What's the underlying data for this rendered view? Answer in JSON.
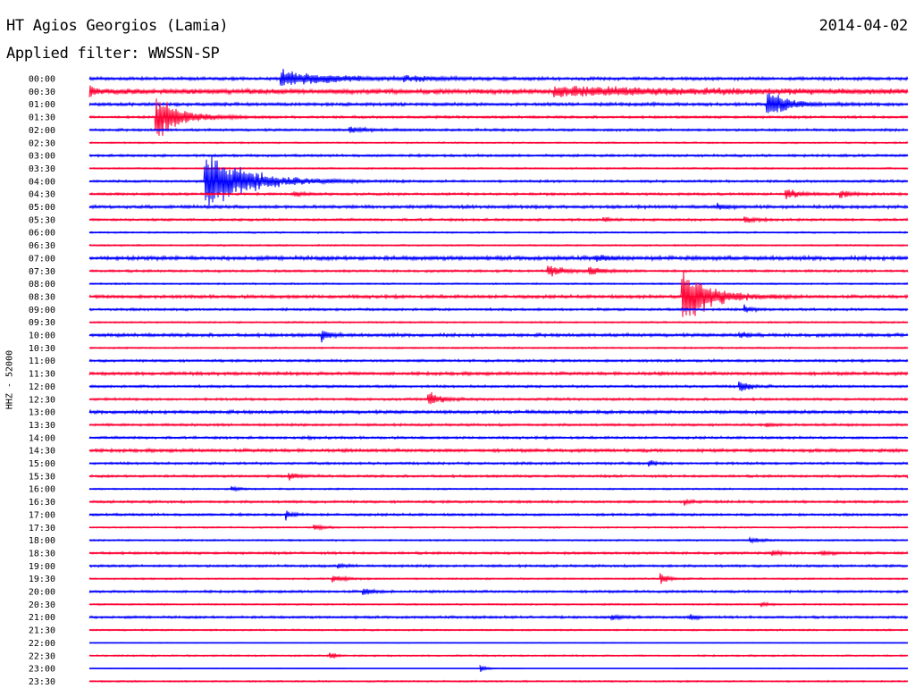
{
  "header": {
    "station": "HT Agios Georgios (Lamia)",
    "date": "2014-04-02",
    "filter": "Applied filter: WWSSN-SP",
    "channel": "HHZ - 52000"
  },
  "colors": {
    "even_rows": "#0000ff",
    "odd_rows": "#ff0033"
  },
  "chart_data": {
    "type": "line",
    "title": "HT Agios Georgios (Lamia)",
    "subtitle": "Applied filter: WWSSN-SP",
    "ylabel": "HHZ - 52000",
    "rows": [
      "00:00",
      "00:30",
      "01:00",
      "01:30",
      "02:00",
      "02:30",
      "03:00",
      "03:30",
      "04:00",
      "04:30",
      "05:00",
      "05:30",
      "06:00",
      "06:30",
      "07:00",
      "07:30",
      "08:00",
      "08:30",
      "09:00",
      "09:30",
      "10:00",
      "10:30",
      "11:00",
      "11:30",
      "12:00",
      "12:30",
      "13:00",
      "13:30",
      "14:00",
      "14:30",
      "15:00",
      "15:30",
      "16:00",
      "16:30",
      "17:00",
      "17:30",
      "18:00",
      "18:30",
      "19:00",
      "19:30",
      "20:00",
      "20:30",
      "21:00",
      "21:30",
      "22:00",
      "22:30",
      "23:00",
      "23:30"
    ],
    "row_minutes": 30,
    "noise": [
      2,
      3,
      2,
      1.5,
      1.5,
      1,
      1.5,
      1,
      1.5,
      1.5,
      2,
      1.5,
      1,
      1,
      2.5,
      1.5,
      1,
      2,
      1.5,
      1,
      2,
      1,
      1.5,
      2,
      1.5,
      1.5,
      2,
      1.5,
      1.5,
      2,
      1.5,
      1.5,
      1,
      1.5,
      1.5,
      1,
      1,
      1.5,
      1.5,
      1,
      1.5,
      1,
      1.5,
      1,
      0.5,
      1,
      0.5,
      1
    ],
    "events": [
      {
        "row": 0,
        "t": 7.0,
        "amp": 10,
        "dur": 3.0
      },
      {
        "row": 0,
        "t": 11.5,
        "amp": 3,
        "dur": 2.0
      },
      {
        "row": 1,
        "t": 17.0,
        "amp": 5,
        "dur": 10.0
      },
      {
        "row": 1,
        "t": 0.0,
        "amp": 6,
        "dur": 0.5
      },
      {
        "row": 2,
        "t": 24.8,
        "amp": 18,
        "dur": 1.2
      },
      {
        "row": 3,
        "t": 2.4,
        "amp": 30,
        "dur": 1.5
      },
      {
        "row": 4,
        "t": 9.5,
        "amp": 4,
        "dur": 1.0
      },
      {
        "row": 8,
        "t": 4.2,
        "amp": 40,
        "dur": 2.5
      },
      {
        "row": 9,
        "t": 25.5,
        "amp": 7,
        "dur": 0.8
      },
      {
        "row": 9,
        "t": 27.5,
        "amp": 5,
        "dur": 0.6
      },
      {
        "row": 9,
        "t": 7.5,
        "amp": 3,
        "dur": 0.5
      },
      {
        "row": 10,
        "t": 23.0,
        "amp": 4,
        "dur": 0.5
      },
      {
        "row": 11,
        "t": 24.0,
        "amp": 4,
        "dur": 0.6
      },
      {
        "row": 11,
        "t": 18.8,
        "amp": 3,
        "dur": 0.4
      },
      {
        "row": 15,
        "t": 16.8,
        "amp": 7,
        "dur": 1.0
      },
      {
        "row": 15,
        "t": 18.3,
        "amp": 5,
        "dur": 0.8
      },
      {
        "row": 14,
        "t": 18.5,
        "amp": 3,
        "dur": 1.0
      },
      {
        "row": 17,
        "t": 21.7,
        "amp": 42,
        "dur": 1.5
      },
      {
        "row": 18,
        "t": 24.0,
        "amp": 5,
        "dur": 0.4
      },
      {
        "row": 20,
        "t": 8.5,
        "amp": 8,
        "dur": 0.4
      },
      {
        "row": 20,
        "t": 23.8,
        "amp": 4,
        "dur": 0.4
      },
      {
        "row": 24,
        "t": 23.8,
        "amp": 9,
        "dur": 0.5
      },
      {
        "row": 25,
        "t": 12.4,
        "amp": 11,
        "dur": 0.7
      },
      {
        "row": 27,
        "t": 24.8,
        "amp": 3,
        "dur": 0.3
      },
      {
        "row": 28,
        "t": 8.0,
        "amp": 2,
        "dur": 0.3
      },
      {
        "row": 30,
        "t": 20.5,
        "amp": 4,
        "dur": 0.3
      },
      {
        "row": 31,
        "t": 7.3,
        "amp": 5,
        "dur": 0.5
      },
      {
        "row": 31,
        "t": 30.0,
        "amp": 4,
        "dur": 0.3
      },
      {
        "row": 32,
        "t": 5.2,
        "amp": 3,
        "dur": 0.4
      },
      {
        "row": 33,
        "t": 21.8,
        "amp": 4,
        "dur": 0.3
      },
      {
        "row": 34,
        "t": 7.2,
        "amp": 6,
        "dur": 0.3
      },
      {
        "row": 35,
        "t": 8.2,
        "amp": 4,
        "dur": 0.5
      },
      {
        "row": 36,
        "t": 24.2,
        "amp": 3,
        "dur": 0.6
      },
      {
        "row": 37,
        "t": 25.0,
        "amp": 4,
        "dur": 0.4
      },
      {
        "row": 37,
        "t": 26.8,
        "amp": 2,
        "dur": 0.8
      },
      {
        "row": 38,
        "t": 9.1,
        "amp": 3,
        "dur": 0.3
      },
      {
        "row": 39,
        "t": 8.9,
        "amp": 5,
        "dur": 0.6
      },
      {
        "row": 39,
        "t": 20.9,
        "amp": 7,
        "dur": 0.4
      },
      {
        "row": 40,
        "t": 10.0,
        "amp": 6,
        "dur": 0.5
      },
      {
        "row": 41,
        "t": 24.6,
        "amp": 4,
        "dur": 0.3
      },
      {
        "row": 42,
        "t": 19.1,
        "amp": 3,
        "dur": 0.6
      },
      {
        "row": 42,
        "t": 22.0,
        "amp": 4,
        "dur": 0.4
      },
      {
        "row": 45,
        "t": 8.8,
        "amp": 6,
        "dur": 0.2
      },
      {
        "row": 46,
        "t": 14.3,
        "amp": 8,
        "dur": 0.2
      }
    ],
    "gaps": [
      {
        "row": 46,
        "t_start": 9.4,
        "t_end": 14.3
      },
      {
        "row": 46,
        "t_start": 15.9,
        "t_end": 21.4
      }
    ]
  }
}
